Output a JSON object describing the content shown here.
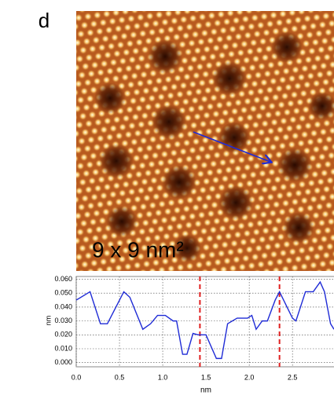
{
  "panel_label": "d",
  "image": {
    "scale_label": "9 x 9 nm²"
  },
  "chart_data": {
    "type": "line",
    "x_label": "nm",
    "y_label": "nm",
    "x": [
      0,
      0.16,
      0.28,
      0.36,
      0.55,
      0.62,
      0.77,
      0.86,
      0.94,
      1.03,
      1.12,
      1.16,
      1.23,
      1.28,
      1.35,
      1.41,
      1.5,
      1.62,
      1.68,
      1.75,
      1.86,
      1.98,
      2.03,
      2.08,
      2.15,
      2.21,
      2.3,
      2.35,
      2.5,
      2.54,
      2.65,
      2.74,
      2.82,
      2.87,
      2.94,
      2.98
    ],
    "series": [
      {
        "color": "#1f2bd6",
        "values": [
          0.045,
          0.051,
          0.028,
          0.028,
          0.051,
          0.047,
          0.024,
          0.028,
          0.034,
          0.034,
          0.03,
          0.03,
          0.006,
          0.006,
          0.021,
          0.02,
          0.02,
          0.003,
          0.003,
          0.028,
          0.032,
          0.032,
          0.034,
          0.024,
          0.03,
          0.03,
          0.045,
          0.051,
          0.032,
          0.03,
          0.051,
          0.051,
          0.058,
          0.051,
          0.028,
          0.024
        ]
      }
    ],
    "markers": {
      "color": "#e02020",
      "x": [
        1.43,
        2.35
      ]
    },
    "xlim": [
      0,
      2.98
    ],
    "ylim": [
      -0.003,
      0.062
    ],
    "xticks": [
      {
        "value": 0,
        "label": "0.0"
      },
      0.5,
      {
        "value": 1,
        "label": "1.0"
      },
      1.5,
      {
        "value": 2,
        "label": "2.0"
      },
      2.5
    ],
    "yticks": [
      {
        "value": 0,
        "label": "0.000"
      },
      {
        "value": 0.01,
        "label": "0.010"
      },
      {
        "value": 0.02,
        "label": "0.020"
      },
      {
        "value": 0.03,
        "label": "0.030"
      },
      {
        "value": 0.04,
        "label": "0.040"
      },
      {
        "value": 0.05,
        "label": "0.050"
      },
      {
        "value": 0.06,
        "label": "0.060"
      }
    ],
    "grid": true
  }
}
